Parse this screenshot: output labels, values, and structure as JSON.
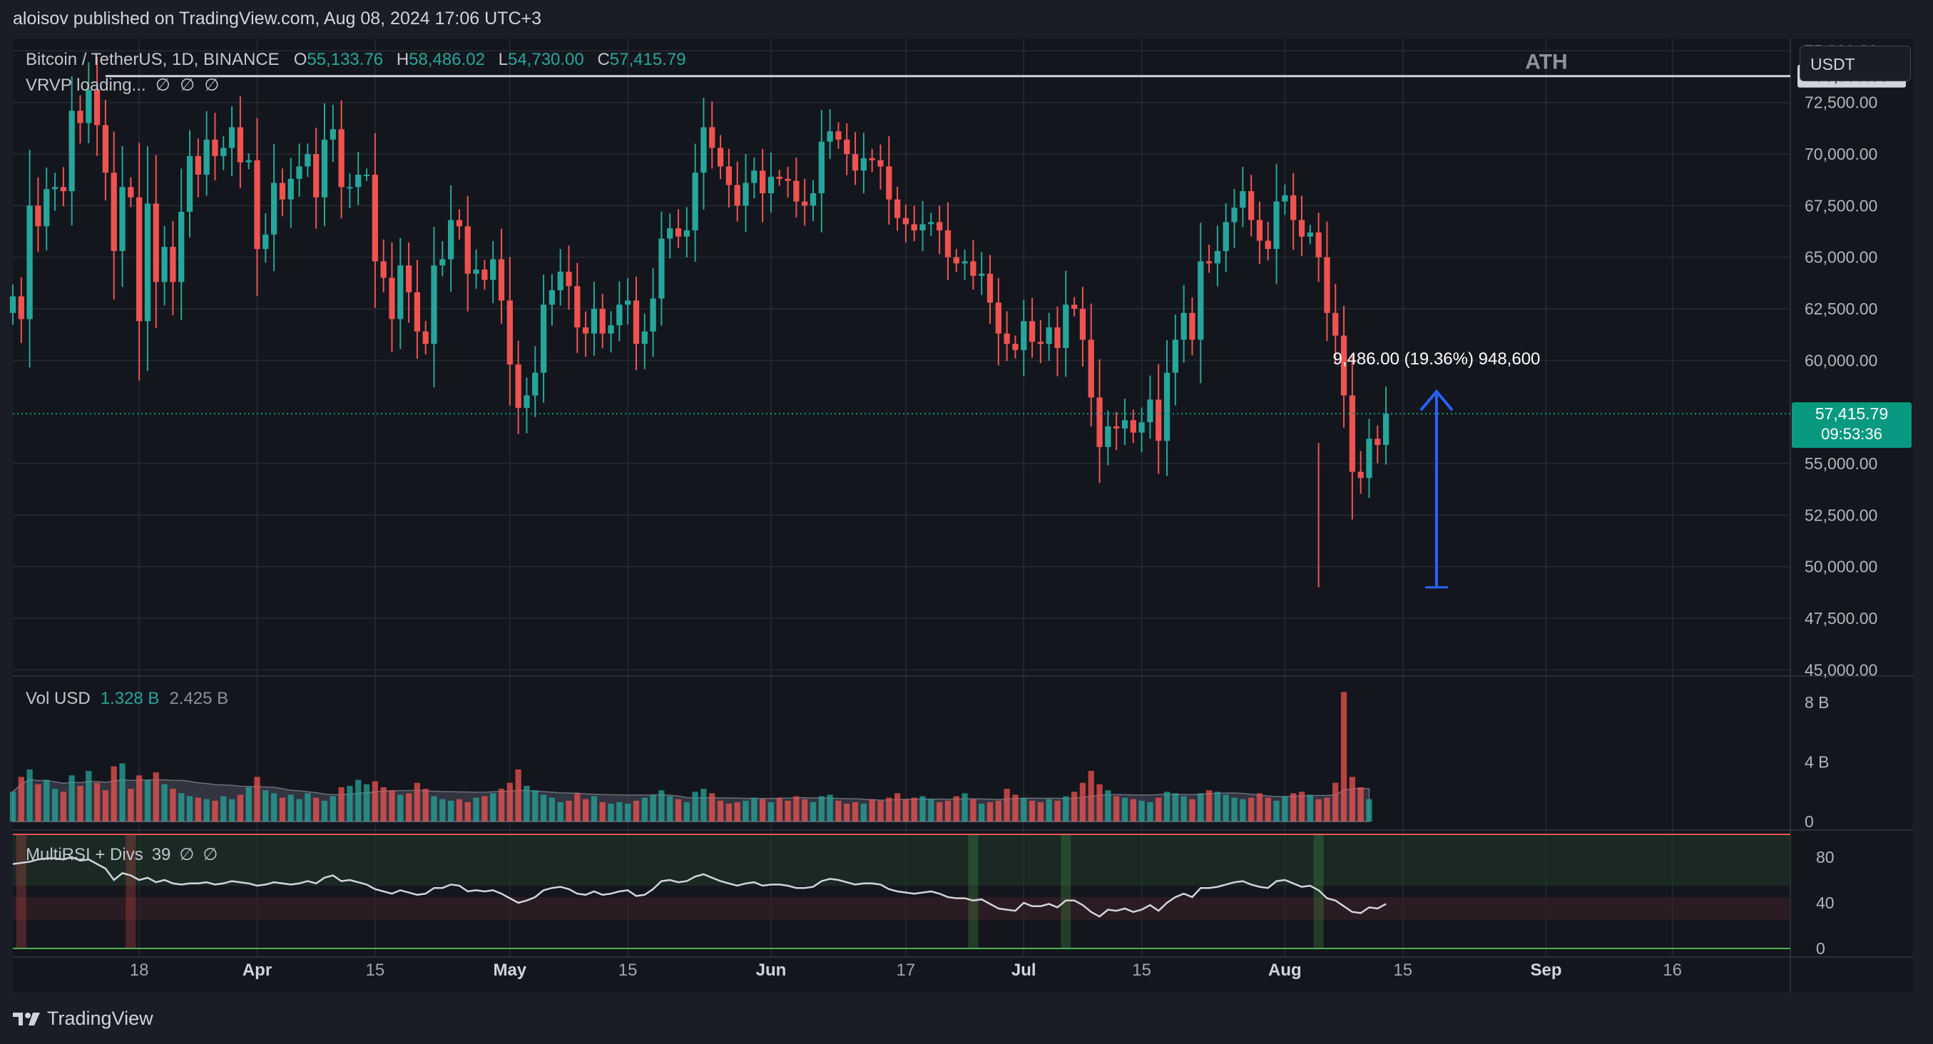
{
  "header": {
    "published_line": "aloisov published on TradingView.com, Aug 08, 2024 17:06 UTC+3"
  },
  "symbol": {
    "name": "Bitcoin / TetherUS, 1D, BINANCE",
    "open_label": "O",
    "open": "55,133.76",
    "high_label": "H",
    "high": "58,486.02",
    "low_label": "L",
    "low": "54,730.00",
    "close_label": "C",
    "close": "57,415.79"
  },
  "vrvp": {
    "label": "VRVP loading...",
    "icons": [
      "∅",
      "∅",
      "∅"
    ]
  },
  "currency_button": "USDT",
  "annotations": {
    "ath_label": "ATH",
    "ath_value": "73,777.00",
    "measure_text": "9,486.00 (19.36%) 948,600",
    "last_price": "57,415.79",
    "countdown": "09:53:36"
  },
  "volume_pane": {
    "label": "Vol USD",
    "value1": "1.328 B",
    "value2": "2.425 B",
    "ticks": [
      "8 B",
      "4 B",
      "0"
    ]
  },
  "rsi_pane": {
    "label": "MultiRSI + Divs",
    "param": "39",
    "icons": [
      "∅",
      "∅"
    ],
    "ticks": [
      "80",
      "40",
      "0"
    ]
  },
  "footer": {
    "brand": "TradingView"
  },
  "colors": {
    "up": "#26a69a",
    "down": "#ef5350",
    "background": "#1a1d25",
    "grid": "#262a33",
    "ath_line": "#d1d4dc",
    "arrow": "#2962ff",
    "price_tag": "#089981"
  },
  "chart_data": [
    {
      "type": "candlestick",
      "title": "Bitcoin / TetherUS, 1D, BINANCE",
      "y_axis_ticks": [
        "75,000.00",
        "72,500.00",
        "70,000.00",
        "67,500.00",
        "65,000.00",
        "62,500.00",
        "60,000.00",
        "57,415.79",
        "55,000.00",
        "52,500.00",
        "50,000.00",
        "47,500.00",
        "45,000.00"
      ],
      "y_tick_values": [
        75000,
        72500,
        70000,
        67500,
        65000,
        62500,
        60000,
        55000,
        52500,
        50000,
        47500,
        45000
      ],
      "ylim": [
        44700,
        75600
      ],
      "x_axis_labels": [
        {
          "text": "18",
          "date": "2024-03-18"
        },
        {
          "text": "Apr",
          "date": "2024-04-01"
        },
        {
          "text": "15",
          "date": "2024-04-15"
        },
        {
          "text": "May",
          "date": "2024-05-01"
        },
        {
          "text": "15",
          "date": "2024-05-15"
        },
        {
          "text": "Jun",
          "date": "2024-06-01"
        },
        {
          "text": "17",
          "date": "2024-06-17"
        },
        {
          "text": "Jul",
          "date": "2024-07-01"
        },
        {
          "text": "15",
          "date": "2024-07-15"
        },
        {
          "text": "Aug",
          "date": "2024-08-01"
        },
        {
          "text": "15",
          "date": "2024-08-15"
        },
        {
          "text": "Sep",
          "date": "2024-09-01"
        },
        {
          "text": "16",
          "date": "2024-09-16"
        }
      ],
      "x_range": [
        "2024-03-03",
        "2024-09-30"
      ],
      "first_date": "2024-03-03",
      "last_date": "2024-08-08",
      "ath": 73777,
      "measure": {
        "from": 49000,
        "to": 58486,
        "date": "2024-08-19"
      },
      "closes": [
        63100,
        62000,
        67500,
        66500,
        68300,
        68400,
        68200,
        72100,
        71500,
        73100,
        71400,
        69100,
        65300,
        68400,
        67900,
        61900,
        67600,
        63800,
        65500,
        63800,
        67200,
        69900,
        69000,
        70700,
        69900,
        70300,
        71300,
        69600,
        69700,
        65400,
        66100,
        68600,
        67800,
        68800,
        69400,
        70000,
        67900,
        70700,
        71200,
        68400,
        68400,
        69000,
        69000,
        64800,
        64000,
        62000,
        64600,
        63300,
        61400,
        60800,
        64600,
        64900,
        66800,
        66500,
        64200,
        64400,
        63900,
        64900,
        62900,
        59800,
        57700,
        58300,
        59400,
        62700,
        63400,
        64300,
        63600,
        61600,
        61300,
        62500,
        61300,
        61700,
        62700,
        62900,
        60800,
        61400,
        63000,
        65900,
        66400,
        66000,
        66300,
        69100,
        71300,
        70300,
        69400,
        68500,
        67500,
        68600,
        69200,
        68100,
        68900,
        68800,
        68700,
        67700,
        67500,
        68100,
        70600,
        71100,
        70700,
        70000,
        69200,
        69800,
        69700,
        69400,
        67800,
        66900,
        66600,
        66300,
        66600,
        66700,
        66300,
        65000,
        64700,
        64800,
        64100,
        64200,
        62800,
        61300,
        60800,
        60500,
        61900,
        60900,
        60800,
        61600,
        60600,
        62700,
        62500,
        61000,
        58200,
        55800,
        56800,
        56700,
        57100,
        56500,
        57000,
        58100,
        56100,
        59400,
        61000,
        62300,
        61000,
        64800,
        64700,
        65300,
        66700,
        67400,
        68200,
        66800,
        65800,
        65400,
        67700,
        68000,
        66800,
        66000,
        66200,
        65000,
        62300,
        61200,
        58300,
        54600,
        54300,
        56200,
        55900,
        57416
      ],
      "closes_note_units": "USDT",
      "volume_ticks": [
        0,
        4000000000,
        8000000000
      ],
      "volumes": [
        2.0,
        3.0,
        3.5,
        2.5,
        2.8,
        2.2,
        2.0,
        3.1,
        2.4,
        3.4,
        2.6,
        2.1,
        3.7,
        3.9,
        2.2,
        3.1,
        2.8,
        3.3,
        2.5,
        2.2,
        1.9,
        1.7,
        1.6,
        1.5,
        1.4,
        1.7,
        1.5,
        1.8,
        2.3,
        3.0,
        2.1,
        1.9,
        1.6,
        1.8,
        1.5,
        1.9,
        1.6,
        1.4,
        1.7,
        2.3,
        2.4,
        2.8,
        2.5,
        2.7,
        2.3,
        2.1,
        1.8,
        1.9,
        2.6,
        2.2,
        1.7,
        1.5,
        1.4,
        1.5,
        1.3,
        1.6,
        1.7,
        1.9,
        2.2,
        2.6,
        3.5,
        2.4,
        2.1,
        1.8,
        1.6,
        1.3,
        1.4,
        1.9,
        1.5,
        1.7,
        1.3,
        1.2,
        1.3,
        1.2,
        1.4,
        1.6,
        1.8,
        2.1,
        1.7,
        1.5,
        1.3,
        2.0,
        2.2,
        1.9,
        1.4,
        1.2,
        1.3,
        1.4,
        1.6,
        1.5,
        1.3,
        1.6,
        1.4,
        1.7,
        1.5,
        1.3,
        1.7,
        1.8,
        1.4,
        1.2,
        1.3,
        1.2,
        1.5,
        1.4,
        1.6,
        1.9,
        1.5,
        1.6,
        1.7,
        1.5,
        1.3,
        1.4,
        1.7,
        1.9,
        1.5,
        1.2,
        1.3,
        1.4,
        2.2,
        1.8,
        1.6,
        1.4,
        1.3,
        1.5,
        1.4,
        1.7,
        2.0,
        2.6,
        3.4,
        2.5,
        2.1,
        1.7,
        1.6,
        1.5,
        1.4,
        1.3,
        1.6,
        2.0,
        1.9,
        1.7,
        1.5,
        1.9,
        2.1,
        2.0,
        1.8,
        1.6,
        1.5,
        1.6,
        1.9,
        1.6,
        1.4,
        1.7,
        1.9,
        2.0,
        1.8,
        1.5,
        1.6,
        2.6,
        8.7,
        3.0,
        2.3,
        1.5
      ],
      "volumes_unit": "billion USD",
      "rsi_ticks": [
        0,
        40,
        80
      ],
      "rsi": [
        74,
        75,
        76,
        78,
        79,
        79,
        78,
        80,
        77,
        78,
        74,
        70,
        60,
        66,
        64,
        60,
        62,
        58,
        60,
        57,
        56,
        57,
        57,
        58,
        56,
        57,
        59,
        58,
        57,
        55,
        56,
        58,
        57,
        56,
        57,
        59,
        57,
        62,
        64,
        59,
        60,
        58,
        56,
        52,
        50,
        48,
        51,
        49,
        47,
        48,
        53,
        53,
        56,
        55,
        50,
        51,
        50,
        51,
        48,
        44,
        40,
        42,
        45,
        51,
        53,
        54,
        52,
        48,
        47,
        50,
        47,
        48,
        50,
        51,
        46,
        47,
        52,
        59,
        60,
        58,
        59,
        63,
        65,
        62,
        59,
        57,
        55,
        57,
        58,
        55,
        56,
        56,
        55,
        53,
        53,
        54,
        59,
        61,
        60,
        58,
        56,
        57,
        57,
        56,
        52,
        50,
        49,
        48,
        49,
        50,
        48,
        45,
        44,
        44,
        42,
        43,
        39,
        35,
        34,
        33,
        40,
        37,
        37,
        39,
        36,
        42,
        42,
        38,
        32,
        28,
        34,
        33,
        35,
        32,
        34,
        38,
        33,
        40,
        45,
        48,
        45,
        53,
        53,
        54,
        56,
        58,
        59,
        56,
        54,
        53,
        59,
        60,
        57,
        54,
        55,
        51,
        44,
        42,
        37,
        32,
        31,
        36,
        35,
        39
      ]
    }
  ]
}
